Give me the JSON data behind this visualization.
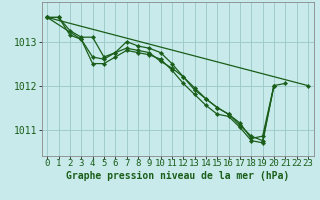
{
  "title": "Graphe pression niveau de la mer (hPa)",
  "background_color": "#c8eaea",
  "grid_color": "#a0cccc",
  "line_color": "#1a5e1a",
  "xlim": [
    -0.5,
    23.5
  ],
  "ylim": [
    1010.4,
    1013.9
  ],
  "yticks": [
    1011,
    1012,
    1013
  ],
  "xticks": [
    0,
    1,
    2,
    3,
    4,
    5,
    6,
    7,
    8,
    9,
    10,
    11,
    12,
    13,
    14,
    15,
    16,
    17,
    18,
    19,
    20,
    21,
    22,
    23
  ],
  "series": [
    {
      "x": [
        0,
        1,
        2,
        3,
        4,
        5,
        6,
        7,
        8,
        9,
        10,
        11,
        12,
        13,
        14,
        15,
        16,
        17,
        18,
        19,
        20,
        21
      ],
      "y": [
        1013.55,
        1013.55,
        1013.25,
        1013.1,
        1013.1,
        1012.65,
        1012.75,
        1012.85,
        1012.8,
        1012.75,
        1012.55,
        1012.4,
        1012.2,
        1011.9,
        1011.7,
        1011.5,
        1011.35,
        1011.15,
        1010.8,
        1010.85,
        1012.0,
        1012.05
      ]
    },
    {
      "x": [
        0,
        1,
        2,
        3,
        4,
        5,
        6,
        7,
        8,
        9,
        10,
        11,
        12,
        13,
        14,
        15,
        16,
        17,
        18,
        19,
        20
      ],
      "y": [
        1013.55,
        1013.55,
        1013.15,
        1013.05,
        1012.65,
        1012.6,
        1012.75,
        1013.0,
        1012.9,
        1012.85,
        1012.75,
        1012.5,
        1012.2,
        1011.95,
        1011.7,
        1011.5,
        1011.35,
        1011.1,
        1010.85,
        1010.75,
        1012.0
      ]
    },
    {
      "x": [
        0,
        3,
        4,
        5,
        6,
        7,
        8,
        9,
        10,
        11,
        12,
        13,
        14,
        15,
        16,
        17,
        18,
        19,
        20
      ],
      "y": [
        1013.55,
        1013.05,
        1012.5,
        1012.5,
        1012.65,
        1012.8,
        1012.75,
        1012.7,
        1012.6,
        1012.35,
        1012.05,
        1011.8,
        1011.55,
        1011.35,
        1011.3,
        1011.05,
        1010.75,
        1010.7,
        1012.0
      ]
    },
    {
      "x": [
        0,
        23
      ],
      "y": [
        1013.55,
        1012.0
      ]
    }
  ],
  "xlabel_fontsize": 6.5,
  "ylabel_fontsize": 7,
  "title_fontsize": 7
}
